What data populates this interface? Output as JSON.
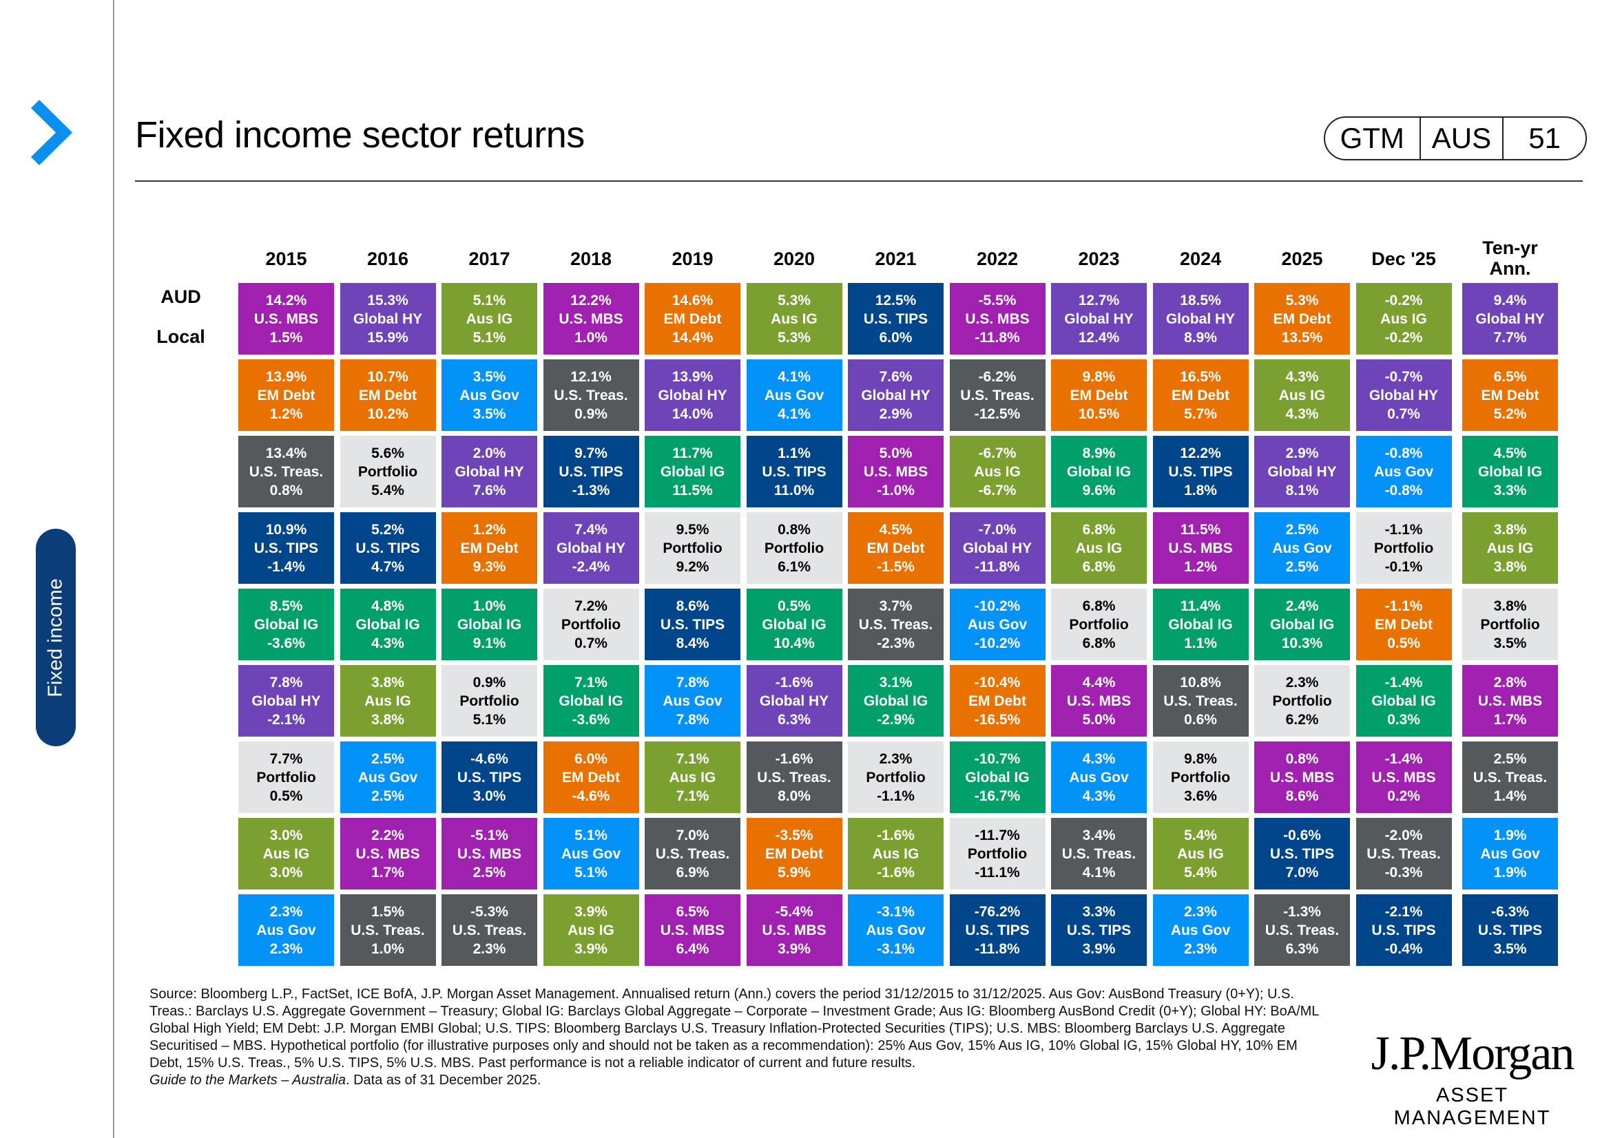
{
  "header": {
    "title": "Fixed income sector returns",
    "badge": [
      "GTM",
      "AUS",
      "51"
    ]
  },
  "side_tab": {
    "label": "Fixed income"
  },
  "row_labels": {
    "top": "AUD",
    "bottom": "Local"
  },
  "colors": {
    "U.S. MBS": "#a020b0",
    "Global HY": "#6f44b8",
    "Aus IG": "#7ba02f",
    "EM Debt": "#e97100",
    "Aus Gov": "#0393f8",
    "U.S. Treas.": "#55595c",
    "Portfolio": "#e3e4e6",
    "U.S. TIPS": "#01458b",
    "Global IG": "#01a06b",
    "accent": "#0a8fee",
    "side_tab": "#0b3d79"
  },
  "chart_data": {
    "type": "table",
    "title": "Fixed income sector returns",
    "row_labels": [
      "AUD",
      "Local"
    ],
    "columns": [
      {
        "label": "2015",
        "cells": [
          [
            "14.2%",
            "U.S. MBS",
            "1.5%"
          ],
          [
            "13.9%",
            "EM Debt",
            "1.2%"
          ],
          [
            "13.4%",
            "U.S. Treas.",
            "0.8%"
          ],
          [
            "10.9%",
            "U.S. TIPS",
            "-1.4%"
          ],
          [
            "8.5%",
            "Global IG",
            "-3.6%"
          ],
          [
            "7.8%",
            "Global HY",
            "-2.1%"
          ],
          [
            "7.7%",
            "Portfolio",
            "0.5%"
          ],
          [
            "3.0%",
            "Aus IG",
            "3.0%"
          ],
          [
            "2.3%",
            "Aus Gov",
            "2.3%"
          ]
        ]
      },
      {
        "label": "2016",
        "cells": [
          [
            "15.3%",
            "Global HY",
            "15.9%"
          ],
          [
            "10.7%",
            "EM Debt",
            "10.2%"
          ],
          [
            "5.6%",
            "Portfolio",
            "5.4%"
          ],
          [
            "5.2%",
            "U.S. TIPS",
            "4.7%"
          ],
          [
            "4.8%",
            "Global IG",
            "4.3%"
          ],
          [
            "3.8%",
            "Aus IG",
            "3.8%"
          ],
          [
            "2.5%",
            "Aus Gov",
            "2.5%"
          ],
          [
            "2.2%",
            "U.S. MBS",
            "1.7%"
          ],
          [
            "1.5%",
            "U.S. Treas.",
            "1.0%"
          ]
        ]
      },
      {
        "label": "2017",
        "cells": [
          [
            "5.1%",
            "Aus IG",
            "5.1%"
          ],
          [
            "3.5%",
            "Aus Gov",
            "3.5%"
          ],
          [
            "2.0%",
            "Global HY",
            "7.6%"
          ],
          [
            "1.2%",
            "EM Debt",
            "9.3%"
          ],
          [
            "1.0%",
            "Global IG",
            "9.1%"
          ],
          [
            "0.9%",
            "Portfolio",
            "5.1%"
          ],
          [
            "-4.6%",
            "U.S. TIPS",
            "3.0%"
          ],
          [
            "-5.1%",
            "U.S. MBS",
            "2.5%"
          ],
          [
            "-5.3%",
            "U.S. Treas.",
            "2.3%"
          ]
        ]
      },
      {
        "label": "2018",
        "cells": [
          [
            "12.2%",
            "U.S. MBS",
            "1.0%"
          ],
          [
            "12.1%",
            "U.S. Treas.",
            "0.9%"
          ],
          [
            "9.7%",
            "U.S. TIPS",
            "-1.3%"
          ],
          [
            "7.4%",
            "Global HY",
            "-2.4%"
          ],
          [
            "7.2%",
            "Portfolio",
            "0.7%"
          ],
          [
            "7.1%",
            "Global IG",
            "-3.6%"
          ],
          [
            "6.0%",
            "EM Debt",
            "-4.6%"
          ],
          [
            "5.1%",
            "Aus Gov",
            "5.1%"
          ],
          [
            "3.9%",
            "Aus IG",
            "3.9%"
          ]
        ]
      },
      {
        "label": "2019",
        "cells": [
          [
            "14.6%",
            "EM Debt",
            "14.4%"
          ],
          [
            "13.9%",
            "Global HY",
            "14.0%"
          ],
          [
            "11.7%",
            "Global IG",
            "11.5%"
          ],
          [
            "9.5%",
            "Portfolio",
            "9.2%"
          ],
          [
            "8.6%",
            "U.S. TIPS",
            "8.4%"
          ],
          [
            "7.8%",
            "Aus Gov",
            "7.8%"
          ],
          [
            "7.1%",
            "Aus IG",
            "7.1%"
          ],
          [
            "7.0%",
            "U.S. Treas.",
            "6.9%"
          ],
          [
            "6.5%",
            "U.S. MBS",
            "6.4%"
          ]
        ]
      },
      {
        "label": "2020",
        "cells": [
          [
            "5.3%",
            "Aus IG",
            "5.3%"
          ],
          [
            "4.1%",
            "Aus Gov",
            "4.1%"
          ],
          [
            "1.1%",
            "U.S. TIPS",
            "11.0%"
          ],
          [
            "0.8%",
            "Portfolio",
            "6.1%"
          ],
          [
            "0.5%",
            "Global IG",
            "10.4%"
          ],
          [
            "-1.6%",
            "Global HY",
            "6.3%"
          ],
          [
            "-1.6%",
            "U.S. Treas.",
            "8.0%"
          ],
          [
            "-3.5%",
            "EM Debt",
            "5.9%"
          ],
          [
            "-5.4%",
            "U.S. MBS",
            "3.9%"
          ]
        ]
      },
      {
        "label": "2021",
        "cells": [
          [
            "12.5%",
            "U.S. TIPS",
            "6.0%"
          ],
          [
            "7.6%",
            "Global HY",
            "2.9%"
          ],
          [
            "5.0%",
            "U.S. MBS",
            "-1.0%"
          ],
          [
            "4.5%",
            "EM Debt",
            "-1.5%"
          ],
          [
            "3.7%",
            "U.S. Treas.",
            "-2.3%"
          ],
          [
            "3.1%",
            "Global IG",
            "-2.9%"
          ],
          [
            "2.3%",
            "Portfolio",
            "-1.1%"
          ],
          [
            "-1.6%",
            "Aus IG",
            "-1.6%"
          ],
          [
            "-3.1%",
            "Aus Gov",
            "-3.1%"
          ]
        ]
      },
      {
        "label": "2022",
        "cells": [
          [
            "-5.5%",
            "U.S. MBS",
            "-11.8%"
          ],
          [
            "-6.2%",
            "U.S. Treas.",
            "-12.5%"
          ],
          [
            "-6.7%",
            "Aus IG",
            "-6.7%"
          ],
          [
            "-7.0%",
            "Global HY",
            "-11.8%"
          ],
          [
            "-10.2%",
            "Aus Gov",
            "-10.2%"
          ],
          [
            "-10.4%",
            "EM Debt",
            "-16.5%"
          ],
          [
            "-10.7%",
            "Global IG",
            "-16.7%"
          ],
          [
            "-11.7%",
            "Portfolio",
            "-11.1%"
          ],
          [
            "-76.2%",
            "U.S. TIPS",
            "-11.8%"
          ]
        ]
      },
      {
        "label": "2023",
        "cells": [
          [
            "12.7%",
            "Global HY",
            "12.4%"
          ],
          [
            "9.8%",
            "EM Debt",
            "10.5%"
          ],
          [
            "8.9%",
            "Global IG",
            "9.6%"
          ],
          [
            "6.8%",
            "Aus IG",
            "6.8%"
          ],
          [
            "6.8%",
            "Portfolio",
            "6.8%"
          ],
          [
            "4.4%",
            "U.S. MBS",
            "5.0%"
          ],
          [
            "4.3%",
            "Aus Gov",
            "4.3%"
          ],
          [
            "3.4%",
            "U.S. Treas.",
            "4.1%"
          ],
          [
            "3.3%",
            "U.S. TIPS",
            "3.9%"
          ]
        ]
      },
      {
        "label": "2024",
        "cells": [
          [
            "18.5%",
            "Global HY",
            "8.9%"
          ],
          [
            "16.5%",
            "EM Debt",
            "5.7%"
          ],
          [
            "12.2%",
            "U.S. TIPS",
            "1.8%"
          ],
          [
            "11.5%",
            "U.S. MBS",
            "1.2%"
          ],
          [
            "11.4%",
            "Global IG",
            "1.1%"
          ],
          [
            "10.8%",
            "U.S. Treas.",
            "0.6%"
          ],
          [
            "9.8%",
            "Portfolio",
            "3.6%"
          ],
          [
            "5.4%",
            "Aus IG",
            "5.4%"
          ],
          [
            "2.3%",
            "Aus Gov",
            "2.3%"
          ]
        ]
      },
      {
        "label": "2025",
        "cells": [
          [
            "5.3%",
            "EM Debt",
            "13.5%"
          ],
          [
            "4.3%",
            "Aus IG",
            "4.3%"
          ],
          [
            "2.9%",
            "Global HY",
            "8.1%"
          ],
          [
            "2.5%",
            "Aus Gov",
            "2.5%"
          ],
          [
            "2.4%",
            "Global IG",
            "10.3%"
          ],
          [
            "2.3%",
            "Portfolio",
            "6.2%"
          ],
          [
            "0.8%",
            "U.S. MBS",
            "8.6%"
          ],
          [
            "-0.6%",
            "U.S. TIPS",
            "7.0%"
          ],
          [
            "-1.3%",
            "U.S. Treas.",
            "6.3%"
          ]
        ]
      },
      {
        "label": "Dec '25",
        "cells": [
          [
            "-0.2%",
            "Aus IG",
            "-0.2%"
          ],
          [
            "-0.7%",
            "Global HY",
            "0.7%"
          ],
          [
            "-0.8%",
            "Aus Gov",
            "-0.8%"
          ],
          [
            "-1.1%",
            "Portfolio",
            "-0.1%"
          ],
          [
            "-1.1%",
            "EM Debt",
            "0.5%"
          ],
          [
            "-1.4%",
            "Global IG",
            "0.3%"
          ],
          [
            "-1.4%",
            "U.S. MBS",
            "0.2%"
          ],
          [
            "-2.0%",
            "U.S. Treas.",
            "-0.3%"
          ],
          [
            "-2.1%",
            "U.S. TIPS",
            "-0.4%"
          ]
        ]
      },
      {
        "label": "Ten-yr Ann.",
        "cells": [
          [
            "9.4%",
            "Global HY",
            "7.7%"
          ],
          [
            "6.5%",
            "EM Debt",
            "5.2%"
          ],
          [
            "4.5%",
            "Global IG",
            "3.3%"
          ],
          [
            "3.8%",
            "Aus IG",
            "3.8%"
          ],
          [
            "3.8%",
            "Portfolio",
            "3.5%"
          ],
          [
            "2.8%",
            "U.S. MBS",
            "1.7%"
          ],
          [
            "2.5%",
            "U.S. Treas.",
            "1.4%"
          ],
          [
            "1.9%",
            "Aus Gov",
            "1.9%"
          ],
          [
            "-6.3%",
            "U.S. TIPS",
            "3.5%"
          ]
        ]
      }
    ]
  },
  "footnote": {
    "text": "Source: Bloomberg L.P., FactSet, ICE BofA, J.P. Morgan Asset Management. Annualised return (Ann.) covers the period 31/12/2015 to 31/12/2025. Aus Gov: AusBond Treasury (0+Y); U.S. Treas.: Barclays U.S. Aggregate Government – Treasury; Global IG: Barclays Global Aggregate – Corporate – Investment Grade; Aus IG: Bloomberg AusBond Credit (0+Y); Global HY: BoA/ML Global High Yield; EM Debt: J.P. Morgan EMBI Global; U.S. TIPS: Bloomberg Barclays U.S. Treasury Inflation-Protected Securities (TIPS); U.S. MBS: Bloomberg Barclays U.S. Aggregate Securitised – MBS. Hypothetical portfolio (for illustrative purposes only and should not be taken as a recommendation): 25% Aus Gov, 15% Aus IG, 10% Global IG, 15% Global HY, 10% EM Debt, 15% U.S. Treas., 5% U.S. TIPS, 5% U.S. MBS. Past performance is not a reliable indicator of current and future results.",
    "guide_title": "Guide to the Markets – Australia",
    "guide_rest": ". Data as of 31 December 2025."
  },
  "logo": {
    "line1": "J.P.Morgan",
    "line2": "ASSET MANAGEMENT"
  }
}
